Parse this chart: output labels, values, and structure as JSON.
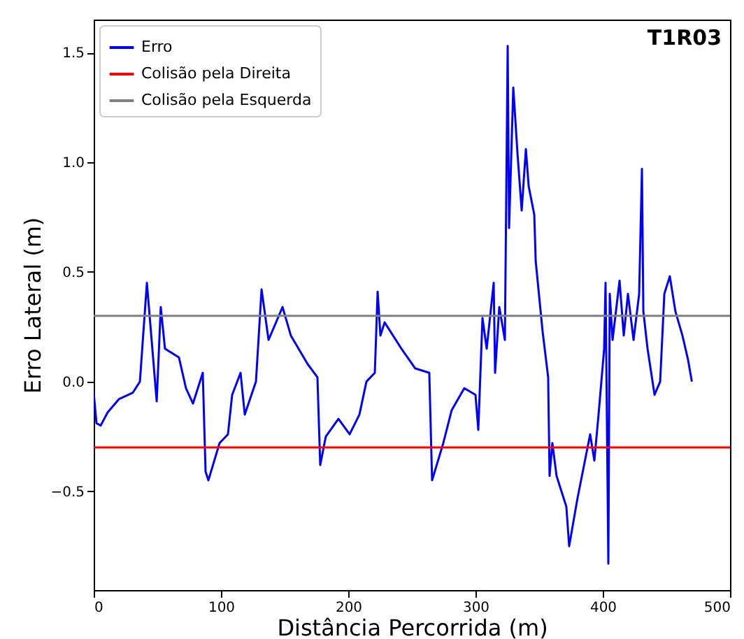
{
  "chart_data": {
    "type": "line",
    "xlabel": "Distância Percorrida (m)",
    "ylabel": "Erro Lateral (m)",
    "annotations": [
      "T1R03"
    ],
    "xlim": [
      0,
      500
    ],
    "xticks": [
      0,
      100,
      200,
      300,
      400,
      500
    ],
    "ylim": [
      -0.95,
      1.65
    ],
    "yticks": [
      -0.5,
      {
        "value": 0,
        "label": "0.0"
      },
      0.5,
      {
        "value": 1,
        "label": "1.0"
      },
      1.5
    ],
    "grid": false,
    "legend": "top left",
    "line_style": "solid",
    "marker": "none",
    "series": [
      {
        "name": "Erro",
        "color": "#0000ff",
        "x": [
          0,
          2.2,
          5.5,
          11,
          19.8,
          30.8,
          36.3,
          41.8,
          49.5,
          52.7,
          56,
          67,
          72.5,
          78,
          85.7,
          87.9,
          90.1,
          98.9,
          105.5,
          108.8,
          115.4,
          118.7,
          127.5,
          131.9,
          137.4,
          148.4,
          154.9,
          168.1,
          175.8,
          178,
          182.4,
          192.3,
          201.1,
          208.8,
          214.3,
          220.9,
          223.1,
          225.3,
          228.6,
          241.8,
          252.7,
          263.7,
          265.9,
          274.7,
          281.3,
          291.2,
          300,
          302.2,
          305.5,
          308.8,
          314.3,
          315.4,
          318.7,
          323.1,
          325.3,
          326.4,
          329.7,
          333,
          336.3,
          339.6,
          341.8,
          346.2,
          347.3,
          352.7,
          357.1,
          358.2,
          360.4,
          363.7,
          371.4,
          373.6,
          380.2,
          390.1,
          393.4,
          396.7,
          401.1,
          402.2,
          404.4,
          405.5,
          407.7,
          413.2,
          416.5,
          419.8,
          424.2,
          428.6,
          430.8,
          431.9,
          435.2,
          440.7,
          445.1,
          448.4,
          452.7,
          457.1,
          462.6,
          467,
          470
        ],
        "values": [
          -0.05,
          -0.19,
          -0.2,
          -0.14,
          -0.08,
          -0.05,
          0.0,
          0.45,
          -0.09,
          0.34,
          0.15,
          0.11,
          -0.03,
          -0.1,
          0.04,
          -0.41,
          -0.45,
          -0.28,
          -0.24,
          -0.06,
          0.04,
          -0.15,
          0.0,
          0.42,
          0.19,
          0.34,
          0.21,
          0.08,
          0.02,
          -0.38,
          -0.25,
          -0.17,
          -0.24,
          -0.15,
          0.0,
          0.04,
          0.41,
          0.21,
          0.27,
          0.15,
          0.06,
          0.04,
          -0.45,
          -0.28,
          -0.13,
          -0.03,
          -0.06,
          -0.22,
          0.29,
          0.15,
          0.45,
          0.04,
          0.34,
          0.19,
          1.53,
          0.7,
          1.34,
          1.04,
          0.78,
          1.06,
          0.89,
          0.76,
          0.55,
          0.23,
          0.02,
          -0.43,
          -0.28,
          -0.43,
          -0.57,
          -0.75,
          -0.53,
          -0.24,
          -0.36,
          -0.15,
          0.15,
          0.45,
          -0.83,
          0.4,
          0.19,
          0.46,
          0.21,
          0.4,
          0.19,
          0.4,
          0.97,
          0.32,
          0.15,
          -0.06,
          0.0,
          0.4,
          0.48,
          0.32,
          0.21,
          0.1,
          0.0
        ]
      },
      {
        "name": "Colisão pela Direita",
        "color": "#ff0000",
        "x": [
          0,
          500
        ],
        "values": [
          -0.3,
          -0.3
        ]
      },
      {
        "name": "Colisão pela Esquerda",
        "color": "#808080",
        "x": [
          0,
          500
        ],
        "values": [
          0.3,
          0.3
        ]
      }
    ]
  }
}
